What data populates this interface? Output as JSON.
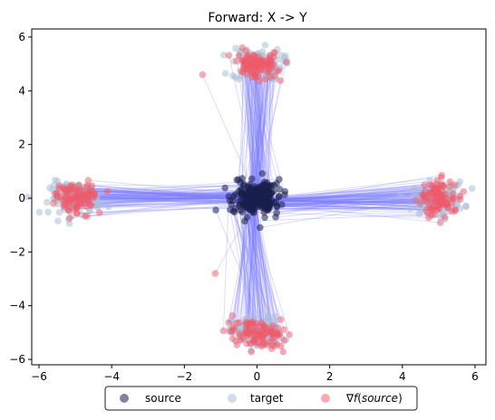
{
  "chart_data": {
    "type": "scatter",
    "title": "Forward: X -> Y",
    "xlabel": "",
    "ylabel": "",
    "xlim": [
      -6.2,
      6.3
    ],
    "ylim": [
      -6.2,
      6.3
    ],
    "xticks": [
      -6,
      -4,
      -2,
      0,
      2,
      4,
      6
    ],
    "yticks": [
      -6,
      -4,
      -2,
      0,
      2,
      4,
      6
    ],
    "grid": false,
    "legend_placement": "bottom-center",
    "colors": {
      "source": "#1a1f4d",
      "target": "#a9c0d6",
      "mapped": "#f05a6a",
      "lines": "#7f7fff"
    },
    "series": [
      {
        "name": "source",
        "clusters": [
          {
            "center": [
              0,
              0
            ],
            "spread": [
              0.45,
              0.45
            ]
          }
        ],
        "approx_points": 400
      },
      {
        "name": "target",
        "clusters": [
          {
            "center": [
              0,
              5.0
            ],
            "spread": [
              0.35,
              0.3
            ]
          },
          {
            "center": [
              0,
              -5.0
            ],
            "spread": [
              0.35,
              0.3
            ]
          },
          {
            "center": [
              5.0,
              0
            ],
            "spread": [
              0.35,
              0.3
            ]
          },
          {
            "center": [
              -5.0,
              0
            ],
            "spread": [
              0.35,
              0.3
            ]
          }
        ],
        "approx_points": 400
      },
      {
        "name": "∇f(source)",
        "clusters": [
          {
            "center": [
              0,
              5.0
            ],
            "spread": [
              0.32,
              0.28
            ]
          },
          {
            "center": [
              0,
              -5.0
            ],
            "spread": [
              0.32,
              0.28
            ]
          },
          {
            "center": [
              5.0,
              0
            ],
            "spread": [
              0.28,
              0.32
            ]
          },
          {
            "center": [
              -5.0,
              0
            ],
            "spread": [
              0.28,
              0.32
            ]
          }
        ],
        "outliers": [
          [
            -1.15,
            -2.8
          ],
          [
            -1.5,
            4.6
          ]
        ],
        "approx_points": 400
      }
    ],
    "legend": {
      "items": [
        {
          "label_main": "source",
          "label_suffix": ""
        },
        {
          "label_main": "target",
          "label_suffix": ""
        },
        {
          "label_main": "∇",
          "label_italic": "f",
          "label_rest": "(",
          "label_italic2": "source",
          "label_end": ")"
        }
      ]
    }
  }
}
